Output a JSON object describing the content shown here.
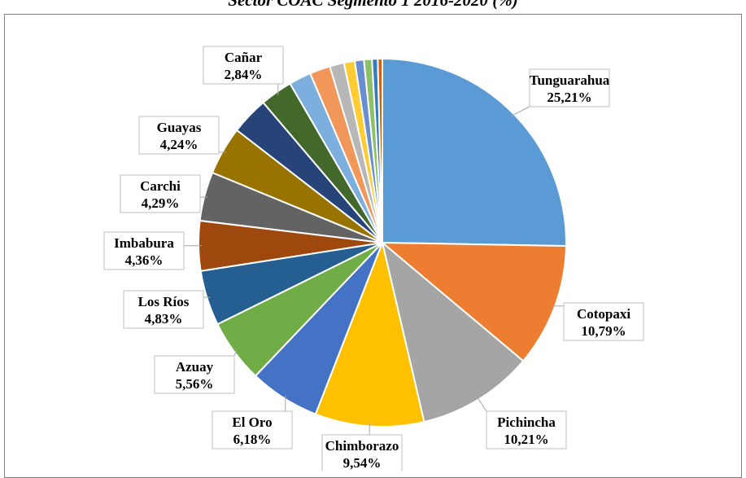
{
  "chart_data": {
    "type": "pie",
    "title": "Sector COAC Segmento 1 2016-2020 (%)",
    "slices": [
      {
        "label": "Tunguarahua",
        "value_label": "25,21%",
        "value": 25.21,
        "color": "#5b9bd5"
      },
      {
        "label": "Cotopaxi",
        "value_label": "10,79%",
        "value": 10.79,
        "color": "#ed7d31"
      },
      {
        "label": "Pichincha",
        "value_label": "10,21%",
        "value": 10.21,
        "color": "#a5a5a5"
      },
      {
        "label": "Chimborazo",
        "value_label": "9,54%",
        "value": 9.54,
        "color": "#ffc000"
      },
      {
        "label": "El Oro",
        "value_label": "6,18%",
        "value": 6.18,
        "color": "#4472c4"
      },
      {
        "label": "Azuay",
        "value_label": "5,56%",
        "value": 5.56,
        "color": "#70ad47"
      },
      {
        "label": "Los Ríos",
        "value_label": "4,83%",
        "value": 4.83,
        "color": "#255e91"
      },
      {
        "label": "Imbabura",
        "value_label": "4,36%",
        "value": 4.36,
        "color": "#9e480e"
      },
      {
        "label": "Carchi",
        "value_label": "4,29%",
        "value": 4.29,
        "color": "#636363"
      },
      {
        "label": "Guayas",
        "value_label": "4,24%",
        "value": 4.24,
        "color": "#997300"
      },
      {
        "label": "",
        "value_label": "",
        "value": 3.3,
        "color": "#264478"
      },
      {
        "label": "Cañar",
        "value_label": "2,84%",
        "value": 2.84,
        "color": "#43682b"
      },
      {
        "label": "",
        "value_label": "",
        "value": 1.95,
        "color": "#7cafdd"
      },
      {
        "label": "",
        "value_label": "",
        "value": 1.8,
        "color": "#f1975a"
      },
      {
        "label": "",
        "value_label": "",
        "value": 1.25,
        "color": "#b7b7b7"
      },
      {
        "label": "",
        "value_label": "",
        "value": 0.95,
        "color": "#ffcd33"
      },
      {
        "label": "",
        "value_label": "",
        "value": 0.8,
        "color": "#698ed0"
      },
      {
        "label": "",
        "value_label": "",
        "value": 0.7,
        "color": "#8cc168"
      },
      {
        "label": "",
        "value_label": "",
        "value": 0.5,
        "color": "#327dc2"
      },
      {
        "label": "",
        "value_label": "",
        "value": 0.4,
        "color": "#d26012"
      }
    ]
  }
}
